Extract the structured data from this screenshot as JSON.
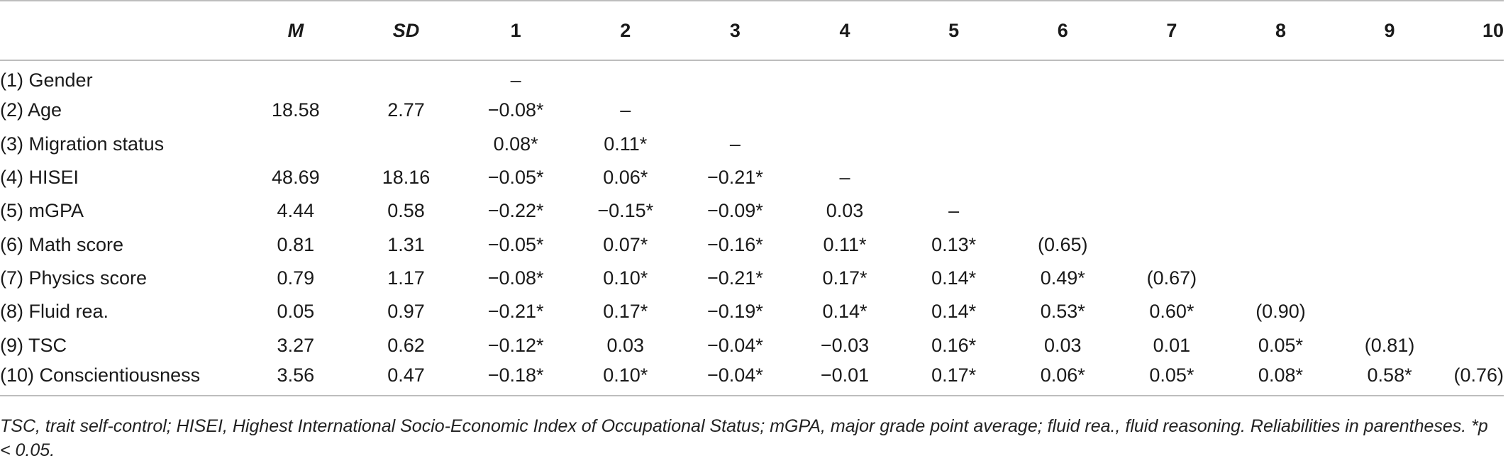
{
  "table": {
    "headers": [
      "",
      "M",
      "SD",
      "1",
      "2",
      "3",
      "4",
      "5",
      "6",
      "7",
      "8",
      "9",
      "10"
    ],
    "rows": [
      {
        "cells": [
          "(1) Gender",
          "",
          "",
          "–",
          "",
          "",
          "",
          "",
          "",
          "",
          "",
          "",
          ""
        ]
      },
      {
        "cells": [
          "(2) Age",
          "18.58",
          "2.77",
          "−0.08*",
          "–",
          "",
          "",
          "",
          "",
          "",
          "",
          "",
          ""
        ]
      },
      {
        "cells": [
          "(3) Migration status",
          "",
          "",
          "0.08*",
          "0.11*",
          "–",
          "",
          "",
          "",
          "",
          "",
          "",
          ""
        ]
      },
      {
        "cells": [
          "(4) HISEI",
          "48.69",
          "18.16",
          "−0.05*",
          "0.06*",
          "−0.21*",
          "–",
          "",
          "",
          "",
          "",
          "",
          ""
        ]
      },
      {
        "cells": [
          "(5) mGPA",
          "4.44",
          "0.58",
          "−0.22*",
          "−0.15*",
          "−0.09*",
          "0.03",
          "–",
          "",
          "",
          "",
          "",
          ""
        ]
      },
      {
        "cells": [
          "(6) Math score",
          "0.81",
          "1.31",
          "−0.05*",
          "0.07*",
          "−0.16*",
          "0.11*",
          "0.13*",
          "(0.65)",
          "",
          "",
          "",
          ""
        ]
      },
      {
        "cells": [
          "(7) Physics score",
          "0.79",
          "1.17",
          "−0.08*",
          "0.10*",
          "−0.21*",
          "0.17*",
          "0.14*",
          "0.49*",
          "(0.67)",
          "",
          "",
          ""
        ]
      },
      {
        "cells": [
          "(8) Fluid rea.",
          "0.05",
          "0.97",
          "−0.21*",
          "0.17*",
          "−0.19*",
          "0.14*",
          "0.14*",
          "0.53*",
          "0.60*",
          "(0.90)",
          "",
          ""
        ]
      },
      {
        "cells": [
          "(9) TSC",
          "3.27",
          "0.62",
          "−0.12*",
          "0.03",
          "−0.04*",
          "−0.03",
          "0.16*",
          "0.03",
          "0.01",
          "0.05*",
          "(0.81)",
          ""
        ]
      },
      {
        "cells": [
          "(10) Conscientiousness",
          "3.56",
          "0.47",
          "−0.18*",
          "0.10*",
          "−0.04*",
          "−0.01",
          "0.17*",
          "0.06*",
          "0.05*",
          "0.08*",
          "0.58*",
          "(0.76)"
        ]
      }
    ]
  },
  "note": "TSC, trait self-control; HISEI, Highest International Socio-Economic Index of Occupational Status; mGPA, major grade point average; fluid rea., fluid reasoning. Reliabilities in parentheses. *p < 0.05."
}
